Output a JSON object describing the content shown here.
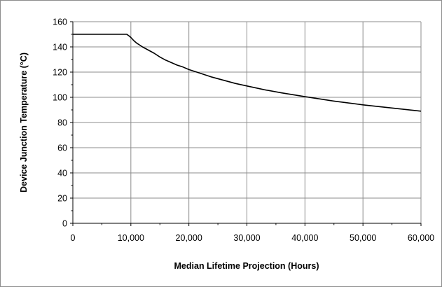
{
  "chart_data": {
    "type": "line",
    "title": "",
    "xlabel": "Median Lifetime Projection (Hours)",
    "ylabel": "Device Junction Temperature (°C)",
    "xlim": [
      0,
      60000
    ],
    "ylim": [
      0,
      160
    ],
    "x_ticks": [
      0,
      10000,
      20000,
      30000,
      40000,
      50000,
      60000
    ],
    "x_tick_labels": [
      "0",
      "10,000",
      "20,000",
      "30,000",
      "40,000",
      "50,000",
      "60,000"
    ],
    "y_ticks": [
      0,
      20,
      40,
      60,
      80,
      100,
      120,
      140,
      160
    ],
    "y_tick_labels": [
      "0",
      "20",
      "40",
      "60",
      "80",
      "100",
      "120",
      "140",
      "160"
    ],
    "grid": true,
    "legend": "none",
    "line_color": "#000000",
    "grid_color": "#8c8c8c",
    "series": [
      {
        "name": "",
        "x": [
          0,
          9300,
          9600,
          10000,
          10500,
          11000,
          12000,
          13000,
          14000,
          15000,
          16000,
          17000,
          18000,
          19000,
          20000,
          22000,
          24000,
          26000,
          28000,
          30000,
          33000,
          36000,
          40000,
          45000,
          50000,
          55000,
          60000
        ],
        "y": [
          150,
          150,
          149,
          147.5,
          145,
          143,
          140,
          137.5,
          135,
          132,
          129.5,
          127.5,
          125.5,
          124,
          122,
          119,
          116,
          113.5,
          111,
          109,
          106,
          103.5,
          100.5,
          97,
          94,
          91.5,
          89
        ]
      }
    ]
  }
}
